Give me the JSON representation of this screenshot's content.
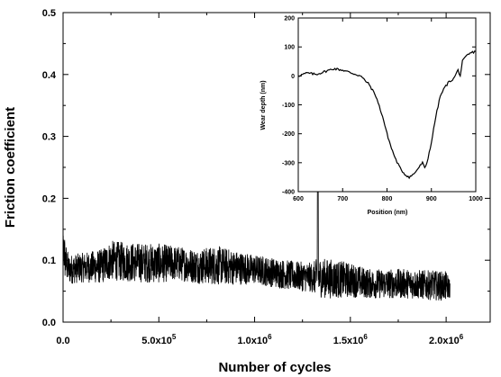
{
  "chart_data": [
    {
      "type": "line",
      "xlabel": "Number of cycles",
      "ylabel": "Friction coefficient",
      "xlim": [
        0,
        2230000
      ],
      "ylim": [
        0,
        0.5
      ],
      "x_ticks": [
        0,
        500000,
        1000000,
        1500000,
        2000000
      ],
      "x_tick_labels": [
        {
          "mant": "0.0",
          "exp": ""
        },
        {
          "mant": "5.0x10",
          "exp": "5"
        },
        {
          "mant": "1.0x10",
          "exp": "6"
        },
        {
          "mant": "1.5x10",
          "exp": "6"
        },
        {
          "mant": "2.0x10",
          "exp": "6"
        }
      ],
      "y_ticks": [
        0.0,
        0.1,
        0.2,
        0.3,
        0.4,
        0.5
      ],
      "y_tick_labels": [
        "0.0",
        "0.1",
        "0.2",
        "0.3",
        "0.4",
        "0.5"
      ],
      "grid": false,
      "series": [
        {
          "x": [
            0,
            10000,
            30000,
            100000,
            200000,
            250000,
            300000,
            400000,
            500000,
            600000,
            700000,
            800000,
            900000,
            1000000,
            1100000,
            1200000,
            1300000,
            1330000,
            1400000,
            1500000,
            1600000,
            1700000,
            1800000,
            1900000,
            2000000,
            2020000
          ],
          "y": [
            0.14,
            0.1,
            0.085,
            0.088,
            0.09,
            0.1,
            0.098,
            0.096,
            0.095,
            0.095,
            0.09,
            0.092,
            0.088,
            0.085,
            0.08,
            0.075,
            0.072,
            0.22,
            0.07,
            0.068,
            0.062,
            0.062,
            0.062,
            0.06,
            0.058,
            0.055
          ],
          "noise": [
            0.06,
            0.04,
            0.03,
            0.03,
            0.035,
            0.04,
            0.04,
            0.04,
            0.04,
            0.035,
            0.035,
            0.04,
            0.035,
            0.03,
            0.03,
            0.03,
            0.03,
            0.04,
            0.04,
            0.035,
            0.03,
            0.03,
            0.03,
            0.03,
            0.03,
            0.02
          ]
        }
      ]
    },
    {
      "type": "line",
      "xlabel": "Position (nm)",
      "ylabel": "Wear depth (nm)",
      "xlim": [
        600,
        1000
      ],
      "ylim": [
        -400,
        200
      ],
      "x_ticks": [
        600,
        700,
        800,
        900,
        1000
      ],
      "x_tick_labels": [
        "600",
        "700",
        "800",
        "900",
        "1000"
      ],
      "y_ticks": [
        -400,
        -300,
        -200,
        -100,
        0,
        100,
        200
      ],
      "y_tick_labels": [
        "-400",
        "-300",
        "-200",
        "-100",
        "0",
        "100",
        "200"
      ],
      "grid": false,
      "series": [
        {
          "x": [
            600,
            620,
            640,
            660,
            680,
            700,
            720,
            740,
            760,
            775,
            790,
            800,
            810,
            820,
            830,
            840,
            850,
            860,
            870,
            880,
            885,
            890,
            900,
            910,
            920,
            930,
            940,
            950,
            960,
            965,
            970,
            980,
            990,
            1000
          ],
          "y": [
            0,
            10,
            5,
            15,
            25,
            20,
            10,
            0,
            -30,
            -70,
            -140,
            -200,
            -250,
            -290,
            -320,
            -340,
            -350,
            -340,
            -320,
            -300,
            -320,
            -300,
            -230,
            -140,
            -70,
            -40,
            -20,
            -10,
            20,
            0,
            50,
            70,
            80,
            85
          ]
        }
      ]
    }
  ]
}
